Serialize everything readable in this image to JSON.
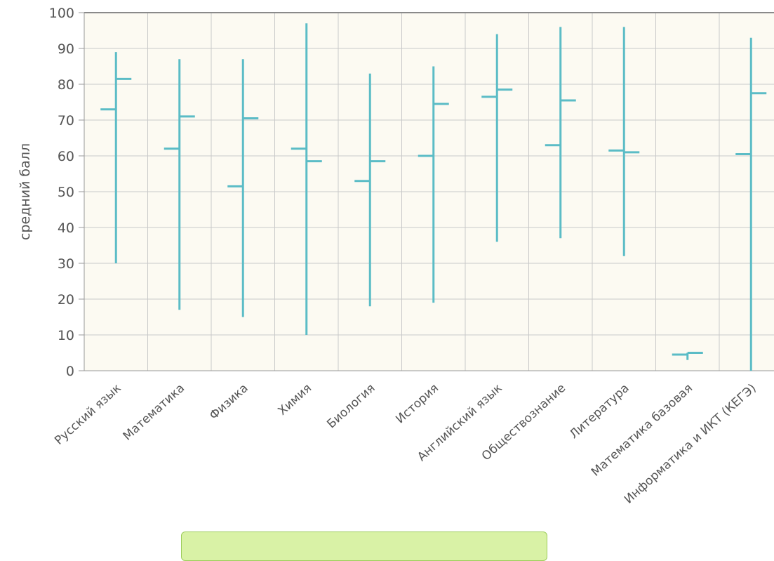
{
  "chart_data": {
    "type": "hi-lo-open-close",
    "title": "",
    "xlabel": "",
    "ylabel": "средний балл",
    "ylim": [
      0,
      100
    ],
    "yticks": [
      0,
      10,
      20,
      30,
      40,
      50,
      60,
      70,
      80,
      90,
      100
    ],
    "grid": true,
    "categories": [
      "Русский язык",
      "Математика",
      "Физика",
      "Химия",
      "Биология",
      "История",
      "Английский язык",
      "Обществознание",
      "Литература",
      "Математика базовая",
      "Информатика и ИКТ (КЕГЭ)"
    ],
    "series": [
      {
        "low": [
          30,
          17,
          15,
          10,
          18,
          19,
          36,
          37,
          32,
          3,
          0
        ],
        "high": [
          89,
          87,
          87,
          97,
          83,
          85,
          94,
          96,
          96,
          5,
          93
        ],
        "open": [
          73,
          62,
          51.5,
          62,
          53,
          60,
          76.5,
          63,
          61.5,
          4.5,
          60.5
        ],
        "close": [
          81.5,
          71,
          70.5,
          58.5,
          58.5,
          74.5,
          78.5,
          75.5,
          61,
          5,
          77.5
        ]
      }
    ],
    "colors": {
      "series": "#5bbcc6",
      "plot_background": "#fcfaf2",
      "grid": "#c9c9c9",
      "axis": "#999999",
      "text": "#555555"
    }
  }
}
